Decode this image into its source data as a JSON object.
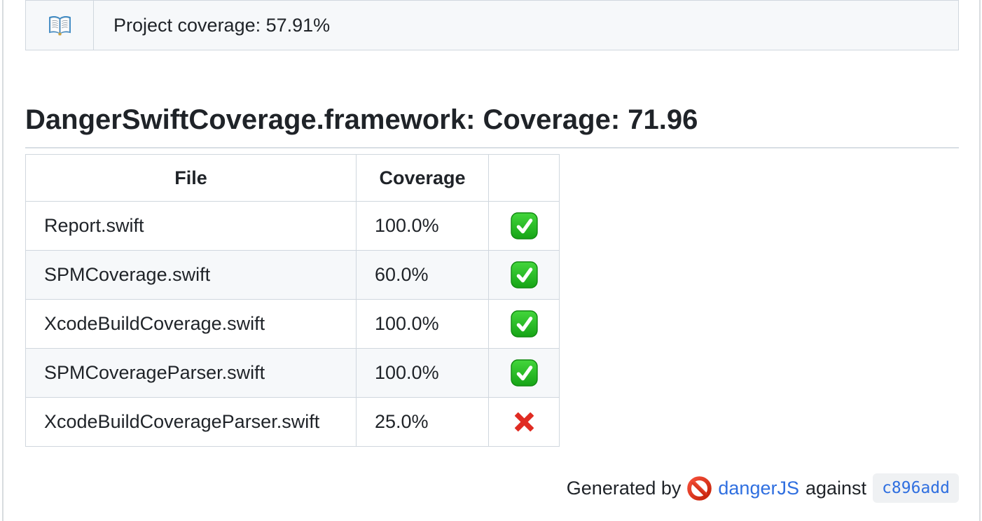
{
  "summary": {
    "icon": "open-book-icon",
    "label": "Project coverage: 57.91%"
  },
  "heading": {
    "title": "DangerSwiftCoverage.framework: Coverage: 71.96"
  },
  "table": {
    "headers": {
      "file": "File",
      "coverage": "Coverage",
      "status": ""
    },
    "rows": [
      {
        "file": "Report.swift",
        "coverage": "100.0%",
        "status": "pass"
      },
      {
        "file": "SPMCoverage.swift",
        "coverage": "60.0%",
        "status": "pass"
      },
      {
        "file": "XcodeBuildCoverage.swift",
        "coverage": "100.0%",
        "status": "pass"
      },
      {
        "file": "SPMCoverageParser.swift",
        "coverage": "100.0%",
        "status": "pass"
      },
      {
        "file": "XcodeBuildCoverageParser.swift",
        "coverage": "25.0%",
        "status": "fail"
      }
    ],
    "status_icons": {
      "pass": "check-icon",
      "fail": "cross-icon"
    }
  },
  "footer": {
    "prefix": "Generated by",
    "tool_icon": "prohibited-icon",
    "tool_link": "dangerJS",
    "middle": "against",
    "commit_link": "c896add"
  },
  "colors": {
    "text": "#1f2328",
    "border": "#d0d7de",
    "row_alt_bg": "#f6f8fa",
    "heading_rule": "#d8dee4",
    "link_blue": "#2f6fe0",
    "commit_chip_bg": "#eff1f3",
    "pass_green": "#23b223",
    "fail_red": "#e02b22",
    "prohibited_red": "#d92c14"
  }
}
